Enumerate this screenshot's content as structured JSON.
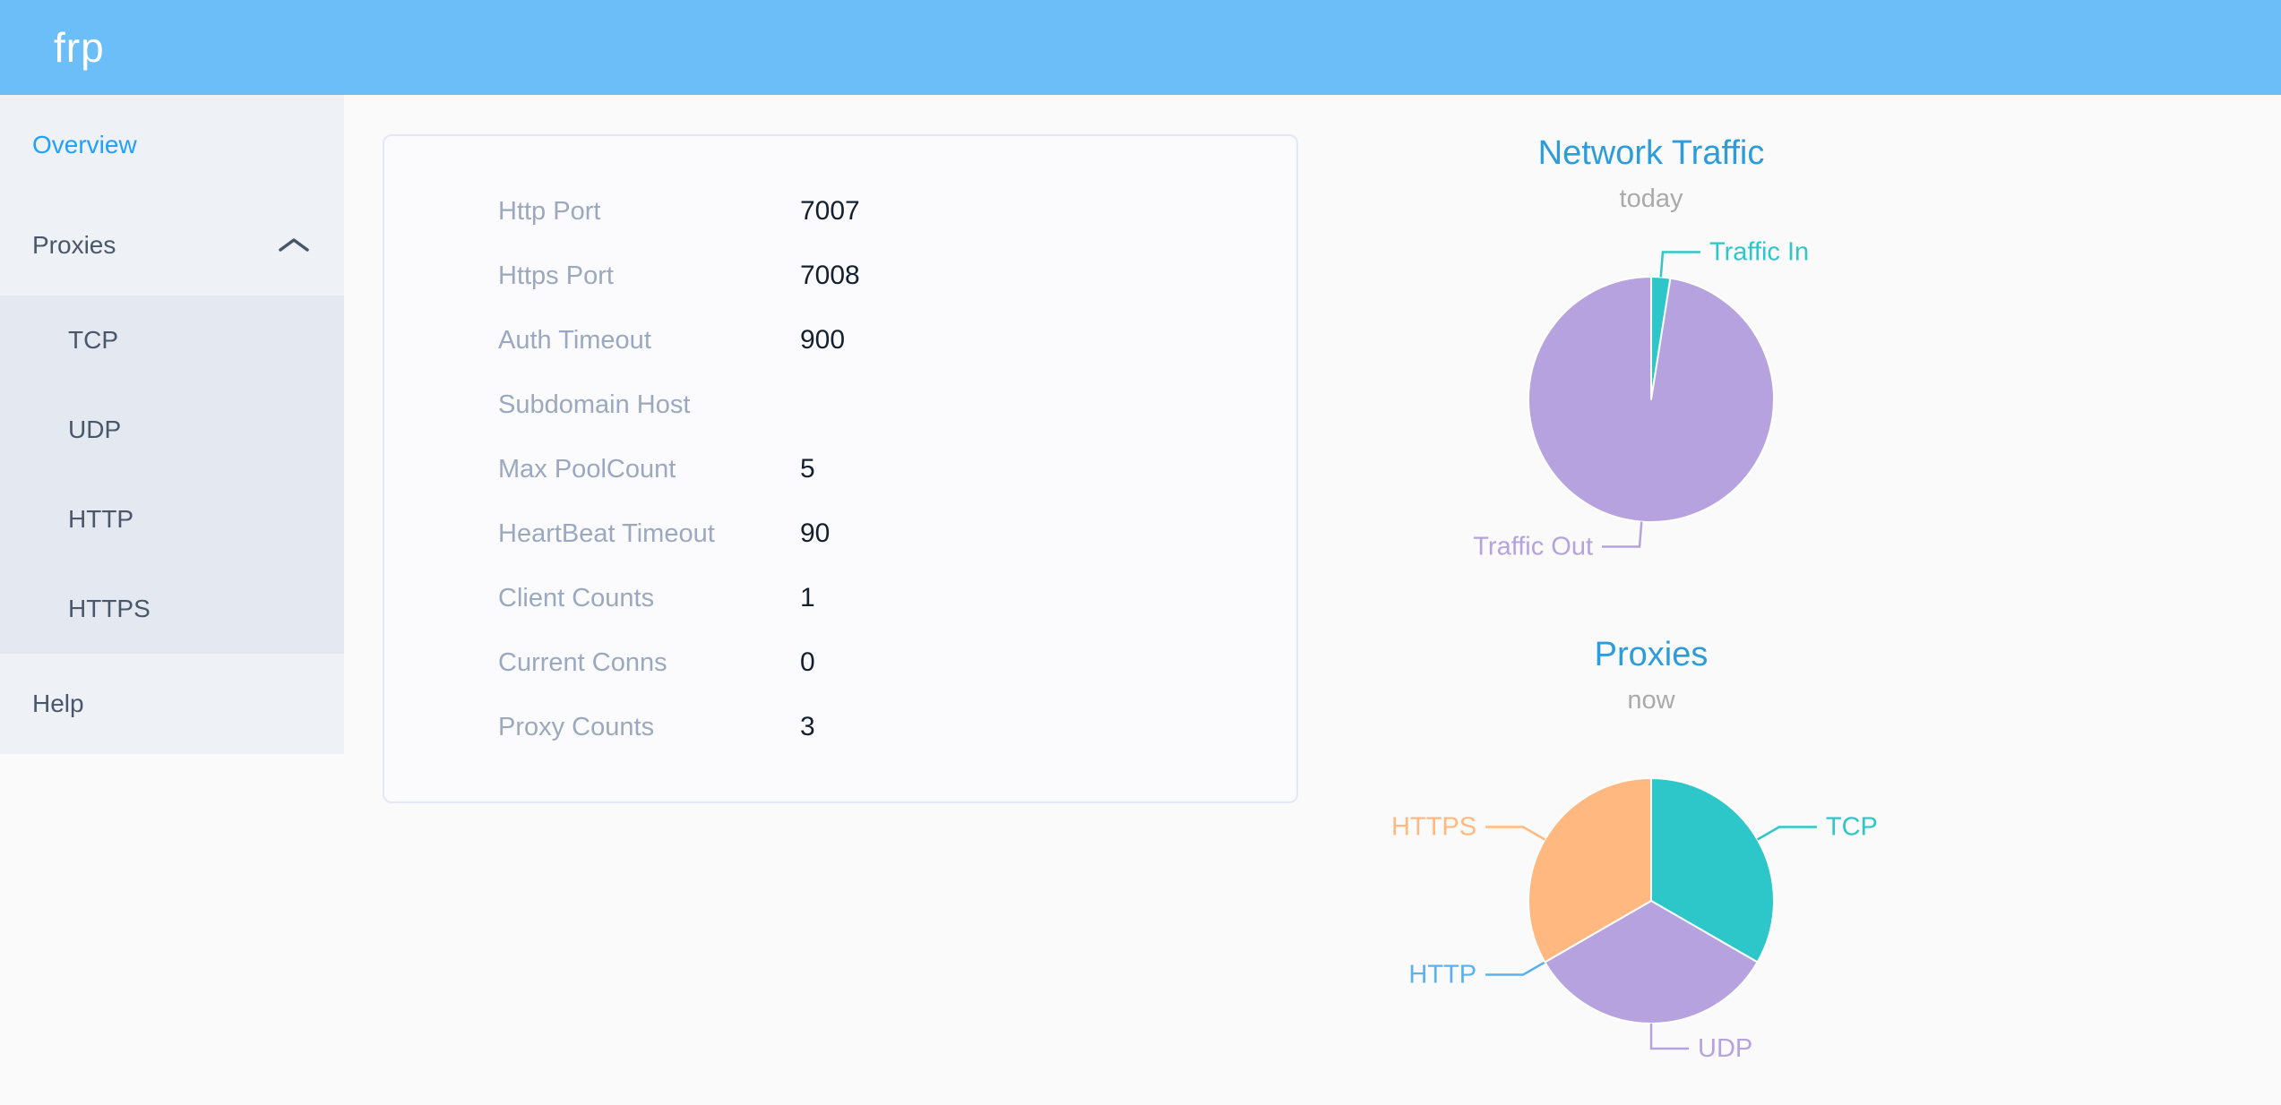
{
  "header": {
    "logo": "frp",
    "background_color": "#6CBEF8"
  },
  "sidebar": {
    "background_color": "#EEF1F6",
    "submenu_background_color": "#E4E8F1",
    "text_color": "#48576A",
    "active_color": "#20A0FF",
    "items": [
      {
        "id": "overview",
        "label": "Overview",
        "active": true
      },
      {
        "id": "proxies",
        "label": "Proxies",
        "expanded": true,
        "children": [
          {
            "id": "tcp",
            "label": "TCP"
          },
          {
            "id": "udp",
            "label": "UDP"
          },
          {
            "id": "http",
            "label": "HTTP"
          },
          {
            "id": "https",
            "label": "HTTPS"
          }
        ]
      },
      {
        "id": "help",
        "label": "Help"
      }
    ]
  },
  "overview_card": {
    "rows": [
      {
        "label": "Http Port",
        "value": "7007"
      },
      {
        "label": "Https Port",
        "value": "7008"
      },
      {
        "label": "Auth Timeout",
        "value": "900"
      },
      {
        "label": "Subdomain Host",
        "value": ""
      },
      {
        "label": "Max PoolCount",
        "value": "5"
      },
      {
        "label": "HeartBeat Timeout",
        "value": "90"
      },
      {
        "label": "Client Counts",
        "value": "1"
      },
      {
        "label": "Current Conns",
        "value": "0"
      },
      {
        "label": "Proxy Counts",
        "value": "3"
      }
    ],
    "label_color": "#9AA9BF",
    "value_color": "#15202E"
  },
  "chart_data": [
    {
      "type": "pie",
      "title": "Network Traffic",
      "subtitle": "today",
      "title_color": "#2D9CDB",
      "subtitle_color": "#AAAAAA",
      "labels": "outside-with-leader-lines",
      "legend_position": "none",
      "values_are": "estimated share (%), read from slice angles",
      "slices": [
        {
          "name": "Traffic In",
          "value": 2.5,
          "color": "#2EC7C9"
        },
        {
          "name": "Traffic Out",
          "value": 97.5,
          "color": "#B6A2DE"
        }
      ]
    },
    {
      "type": "pie",
      "title": "Proxies",
      "subtitle": "now",
      "title_color": "#2D9CDB",
      "subtitle_color": "#AAAAAA",
      "labels": "outside-with-leader-lines",
      "legend_position": "none",
      "values_are": "proxy counts per type (total 3)",
      "slices": [
        {
          "name": "TCP",
          "value": 1,
          "color": "#2EC7C9"
        },
        {
          "name": "UDP",
          "value": 1,
          "color": "#B6A2DE"
        },
        {
          "name": "HTTP",
          "value": 0,
          "color": "#5AB1EF"
        },
        {
          "name": "HTTPS",
          "value": 1,
          "color": "#FFB980"
        }
      ]
    }
  ]
}
